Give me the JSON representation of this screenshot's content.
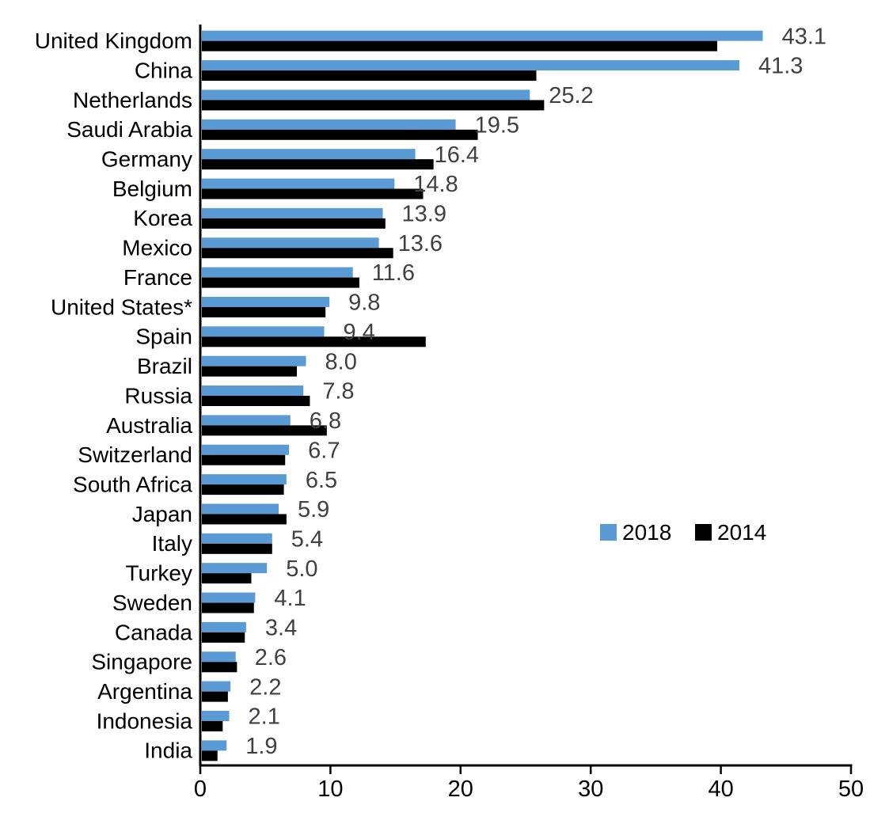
{
  "chart_data": {
    "type": "bar",
    "orientation": "horizontal",
    "title": "",
    "xlabel": "",
    "ylabel": "",
    "xlim": [
      0,
      50
    ],
    "x_ticks": [
      0,
      10,
      20,
      30,
      40,
      50
    ],
    "grid": false,
    "legend_position": "middle-right",
    "categories": [
      "United Kingdom",
      "China",
      "Netherlands",
      "Saudi Arabia",
      "Germany",
      "Belgium",
      "Korea",
      "Mexico",
      "France",
      "United States*",
      "Spain",
      "Brazil",
      "Russia",
      "Australia",
      "Switzerland",
      "South Africa",
      "Japan",
      "Italy",
      "Turkey",
      "Sweden",
      "Canada",
      "Singapore",
      "Argentina",
      "Indonesia",
      "India"
    ],
    "series": [
      {
        "name": "2018",
        "color": "#5B9BD5",
        "values": [
          43.1,
          41.3,
          25.2,
          19.5,
          16.4,
          14.8,
          13.9,
          13.6,
          11.6,
          9.8,
          9.4,
          8.0,
          7.8,
          6.8,
          6.7,
          6.5,
          5.9,
          5.4,
          5.0,
          4.1,
          3.4,
          2.6,
          2.2,
          2.1,
          1.9
        ]
      },
      {
        "name": "2014",
        "color": "#000000",
        "values": [
          39.6,
          25.7,
          26.3,
          21.2,
          17.8,
          17.0,
          14.1,
          14.7,
          12.1,
          9.5,
          17.2,
          7.3,
          8.3,
          9.6,
          6.4,
          6.3,
          6.5,
          5.4,
          3.8,
          4.0,
          3.3,
          2.7,
          2.0,
          1.6,
          1.2
        ]
      }
    ],
    "data_labels": [
      "43.1",
      "41.3",
      "25.2",
      "19.5",
      "16.4",
      "14.8",
      "13.9",
      "13.6",
      "11.6",
      "9.8",
      "9.4",
      "8.0",
      "7.8",
      "6.8",
      "6.7",
      "6.5",
      "5.9",
      "5.4",
      "5.0",
      "4.1",
      "3.4",
      "2.6",
      "2.2",
      "2.1",
      "1.9"
    ],
    "data_label_series": "2018",
    "colors": {
      "axis": "#000000",
      "category_label": "#000000",
      "tick_label": "#000000",
      "value_label": "#404040",
      "background": "#ffffff"
    }
  }
}
